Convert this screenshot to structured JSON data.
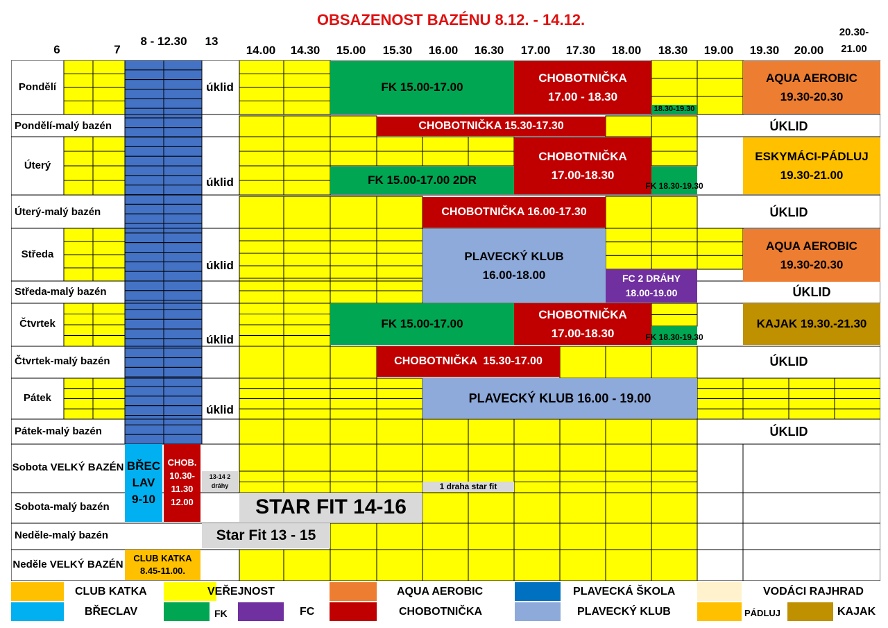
{
  "title": "OBSAZENOST BAZÉNU 8.12. - 14.12.",
  "colors": {
    "yellow": "#ffff00",
    "blue_school": "#4472c4",
    "green": "#00a651",
    "red": "#c00000",
    "orange_aqua": "#ed7d31",
    "light_blue_klub": "#8eaadb",
    "purple": "#7030a0",
    "cyan": "#00b0f0",
    "club_katka": "#ffc000",
    "padluj": "#ffc000",
    "kajak": "#bf9000",
    "vodaci": "#fff2cc",
    "gray": "#d9d9d9"
  },
  "header": {
    "h6": "6",
    "h7": "7",
    "h8": "8 - 12.30",
    "h13": "13",
    "h1400": "14.00",
    "h1430": "14.30",
    "h1500": "15.00",
    "h1530": "15.30",
    "h1600": "16.00",
    "h1630": "16.30",
    "h1700": "17.00",
    "h1730": "17.30",
    "h1800": "18.00",
    "h1830": "18.30",
    "h1900": "19.00",
    "h1930": "19.30",
    "h2000": "20.00",
    "h2030a": "20.30-",
    "h2030b": "21.00"
  },
  "rows": {
    "pondeli": "Pondělí",
    "pondeli_maly": "Pondělí-malý bazén",
    "utery": "Úterý",
    "utery_maly": "Úterý-malý bazén",
    "streda": "Středa",
    "streda_maly": "Středa-malý bazén",
    "ctvrtek": "Čtvrtek",
    "ctvrtek_maly": "Čtvrtek-malý bazén",
    "patek": "Pátek",
    "patek_maly": "Pátek-malý bazén",
    "sobota_velky": "Sobota VELKÝ BAZÉN",
    "sobota_maly": "Sobota-malý bazén",
    "nedele_maly": "Neděle-malý bazén",
    "nedele_velky": "Neděle VELKÝ BAZÉN"
  },
  "uklid_lower": "úklid",
  "uklid_upper": "ÚKLID",
  "blocks": {
    "po_fk": "FK 15.00-17.00",
    "po_chob": "CHOBOTNIČKA 17.00 - 18.30",
    "po_small_green": "18.30-19.30",
    "po_aqua": "AQUA AEROBIC 19.30-20.30",
    "pom_chob": "CHOBOTNIČKA 15.30-17.30",
    "ut_chob": "CHOBOTNIČKA 17.00-18.30",
    "ut_fk": "FK 15.00-17.00 2DR",
    "ut_fk2": "FK 18.30-19.30",
    "ut_eskymaci": "ESKYMÁCI-PÁDLUJ 19.30-21.00",
    "utm_chob": "CHOBOTNIČKA 16.00-17.30",
    "st_klub": "PLAVECKÝ KLUB 16.00-18.00",
    "st_fc": "FC 2 DRÁHY 18.00-19.00",
    "st_aqua": "AQUA AEROBIC 19.30-20.30",
    "ct_fk": "FK 15.00-17.00",
    "ct_chob": "CHOBOTNIČKA 17.00-18.30",
    "ct_fk2": "FK 18.30-19.30",
    "ct_kajak": "KAJAK 19.30.-21.30",
    "ctm_chob": "CHOBOTNIČKA  15.30-17.00",
    "pa_klub": "PLAVECKÝ KLUB 16.00 - 19.00",
    "so_breclav": "BŘEC LAV 9-10",
    "so_chob": "CHOB. 10.30- 11.30 12.00",
    "so_1314": "13-14 2 dráhy",
    "so_stardraha": "1 draha star fit",
    "so_starfit": "STAR FIT 14-16",
    "ne_starfit": "Star Fit 13 - 15",
    "ne_katka": "CLUB KATKA 8.45-11.00."
  },
  "legend": {
    "club_katka": "CLUB KATKA",
    "verejnost": "VEŘEJNOST",
    "aqua": "AQUA AEROBIC",
    "skola": "PLAVECKÁ ŠKOLA",
    "vodaci": "VODÁCI RAJHRAD",
    "breclav": "BŘECLAV",
    "fk": "FK",
    "fc": "FC",
    "chob": "CHOBOTNIČKA",
    "klub": "PLAVECKÝ KLUB",
    "padluj": "PÁDLUJ",
    "kajak": "KAJAK"
  }
}
